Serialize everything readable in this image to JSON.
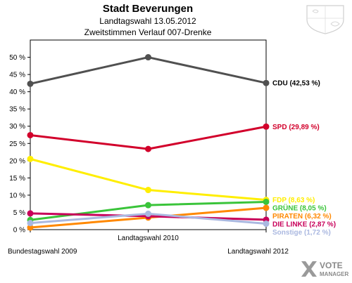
{
  "header": {
    "title": "Stadt Beverungen",
    "subtitle1": "Landtagswahl 13.05.2012",
    "subtitle2": "Zweitstimmen Verlauf 007-Drenke"
  },
  "logo": {
    "line1": "VOTE",
    "line2": "MANAGER"
  },
  "chart_data": {
    "type": "line",
    "title": "Stadt Beverungen",
    "subtitle": "Landtagswahl 13.05.2012 – Zweitstimmen Verlauf 007-Drenke",
    "categories": [
      "Bundestagswahl 2009",
      "Landtagswahl 2010",
      "Landtagswahl 2012"
    ],
    "ylim": [
      0,
      55
    ],
    "yticks": [
      0,
      5,
      10,
      15,
      20,
      25,
      30,
      35,
      40,
      45,
      50
    ],
    "ytick_labels": [
      "0 %",
      "5 %",
      "10 %",
      "15 %",
      "20 %",
      "25 %",
      "30 %",
      "35 %",
      "40 %",
      "45 %",
      "50 %"
    ],
    "grid": false,
    "series": [
      {
        "name": "CDU",
        "end_label": "CDU (42,53 %)",
        "color": "#505050",
        "values": [
          42.3,
          50.0,
          42.53
        ]
      },
      {
        "name": "SPD",
        "end_label": "SPD (29,89 %)",
        "color": "#d2002b",
        "values": [
          27.4,
          23.4,
          29.89
        ]
      },
      {
        "name": "FDP",
        "end_label": "FDP (8,63 %)",
        "color": "#ffee00",
        "values": [
          20.5,
          11.5,
          8.63
        ]
      },
      {
        "name": "GRÜNE",
        "end_label": "GRÜNE (8,05 %)",
        "color": "#3ac43a",
        "values": [
          2.8,
          7.1,
          8.05
        ]
      },
      {
        "name": "PIRATEN",
        "end_label": "PIRATEN (6,32 %)",
        "color": "#ff8800",
        "values": [
          0.6,
          3.5,
          6.32
        ]
      },
      {
        "name": "DIE LINKE",
        "end_label": "DIE LINKE (2,87 %)",
        "color": "#c8005a",
        "values": [
          4.7,
          3.9,
          2.87
        ]
      },
      {
        "name": "Sonstige",
        "end_label": "Sonstige (1,72 %)",
        "color": "#aab8e0",
        "values": [
          1.9,
          4.6,
          1.72
        ]
      }
    ]
  }
}
